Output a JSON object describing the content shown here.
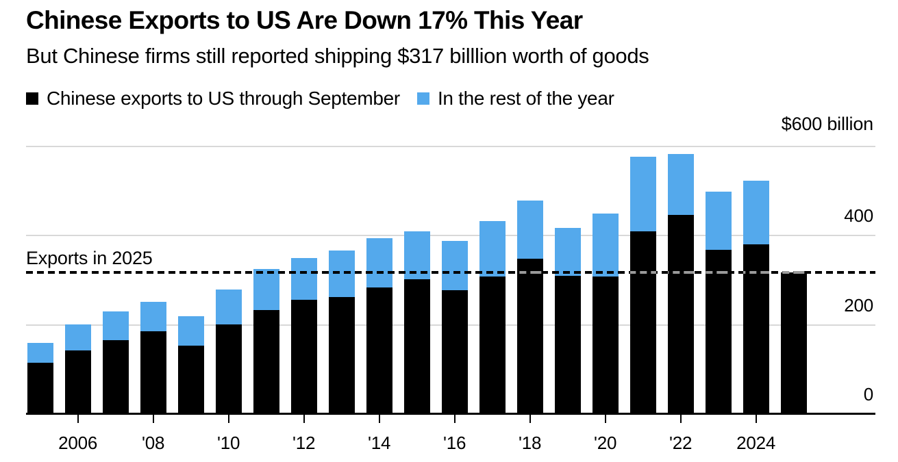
{
  "header": {
    "title": "Chinese Exports to US Are Down 17% This Year",
    "subtitle": "But Chinese firms still reported shipping $317 billlion worth of goods"
  },
  "legend": {
    "items": [
      {
        "label": "Chinese exports to US through September",
        "color": "#000000"
      },
      {
        "label": "In the rest of the year",
        "color": "#54a9ec"
      }
    ]
  },
  "chart_data": {
    "type": "bar",
    "stacked": true,
    "title": "Chinese Exports to US Are Down 17% This Year",
    "subtitle": "But Chinese firms still reported shipping $317 billlion worth of goods",
    "categories": [
      2005,
      2006,
      2007,
      2008,
      2009,
      2010,
      2011,
      2012,
      2013,
      2014,
      2015,
      2016,
      2017,
      2018,
      2019,
      2020,
      2021,
      2022,
      2023,
      2024,
      2025
    ],
    "series": [
      {
        "name": "Chinese exports to US through September",
        "color": "#000000",
        "values": [
          115,
          142,
          166,
          186,
          154,
          201,
          233,
          256,
          263,
          284,
          302,
          278,
          309,
          348,
          310,
          308,
          409,
          447,
          368,
          380,
          317
        ]
      },
      {
        "name": "In the rest of the year",
        "color": "#54a9ec",
        "values": [
          45,
          59,
          64,
          65,
          65,
          79,
          92,
          94,
          104,
          110,
          107,
          111,
          123,
          131,
          107,
          142,
          168,
          136,
          131,
          144,
          0
        ]
      }
    ],
    "totals": [
      160,
      201,
      230,
      251,
      219,
      280,
      325,
      350,
      367,
      394,
      409,
      389,
      432,
      479,
      417,
      450,
      577,
      583,
      499,
      524,
      317
    ],
    "reference_line": {
      "label": "Exports in 2025",
      "value": 317,
      "style": "dashed"
    },
    "y_axis": {
      "unit_label": "$600 billion",
      "ticks": [
        400,
        200,
        0
      ],
      "min": 0,
      "max": 600,
      "side": "right",
      "gridline_values": [
        600,
        400,
        200
      ]
    },
    "x_axis": {
      "tick_years": [
        2006,
        2008,
        2010,
        2012,
        2014,
        2016,
        2018,
        2020,
        2022,
        2024
      ],
      "tick_labels": [
        "2006",
        "'08",
        "'10",
        "'12",
        "'14",
        "'16",
        "'18",
        "'20",
        "'22",
        "2024"
      ]
    },
    "grid": "horizontal",
    "colors": {
      "bar_dark": "#000000",
      "bar_light": "#54a9ec",
      "grid": "#d8d8d8",
      "axis": "#000000",
      "background": "#ffffff",
      "dash_over_bar": "#9a9a9a"
    }
  }
}
